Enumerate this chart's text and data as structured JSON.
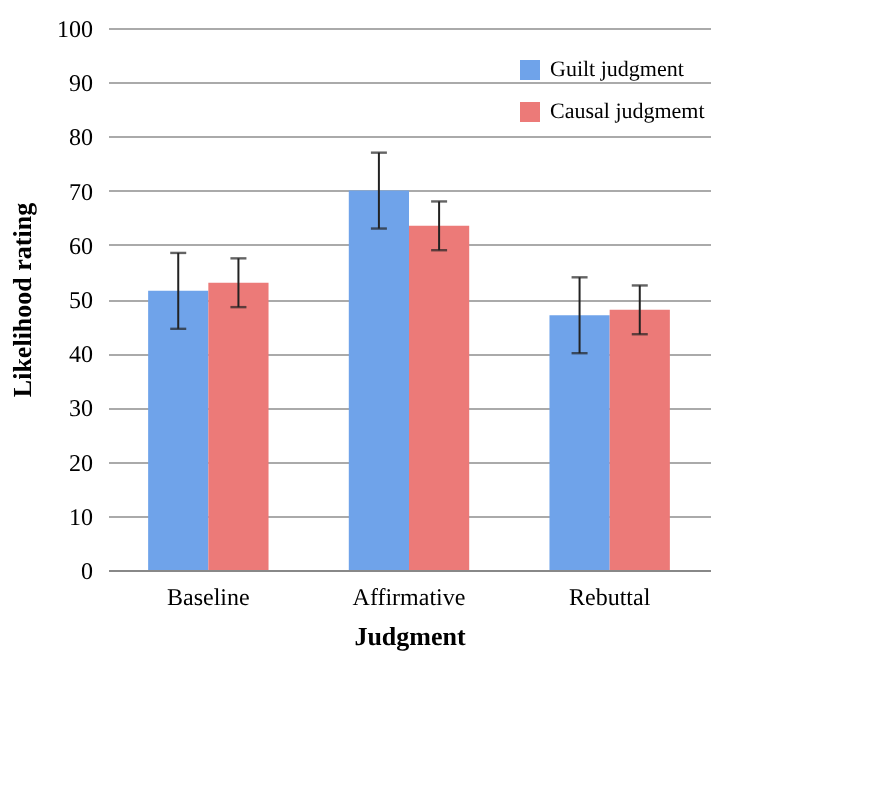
{
  "chart_data": {
    "type": "bar",
    "xlabel": "Judgment",
    "ylabel": "Likelihood rating",
    "categories": [
      "Baseline",
      "Affirmative",
      "Rebuttal"
    ],
    "series": [
      {
        "name": "Guilt judgment",
        "color": "#6fa3ea",
        "values": [
          51.5,
          70,
          47
        ],
        "errors": [
          7,
          7,
          7
        ]
      },
      {
        "name": "Causal judgmemt",
        "color": "#ec7a78",
        "values": [
          53,
          63.5,
          48
        ],
        "errors": [
          4.5,
          4.5,
          4.5
        ]
      }
    ],
    "ylim": [
      0,
      100
    ],
    "yticks": [
      0,
      10,
      20,
      30,
      40,
      50,
      60,
      70,
      80,
      90,
      100
    ],
    "grid": "y",
    "legend": "top right"
  }
}
